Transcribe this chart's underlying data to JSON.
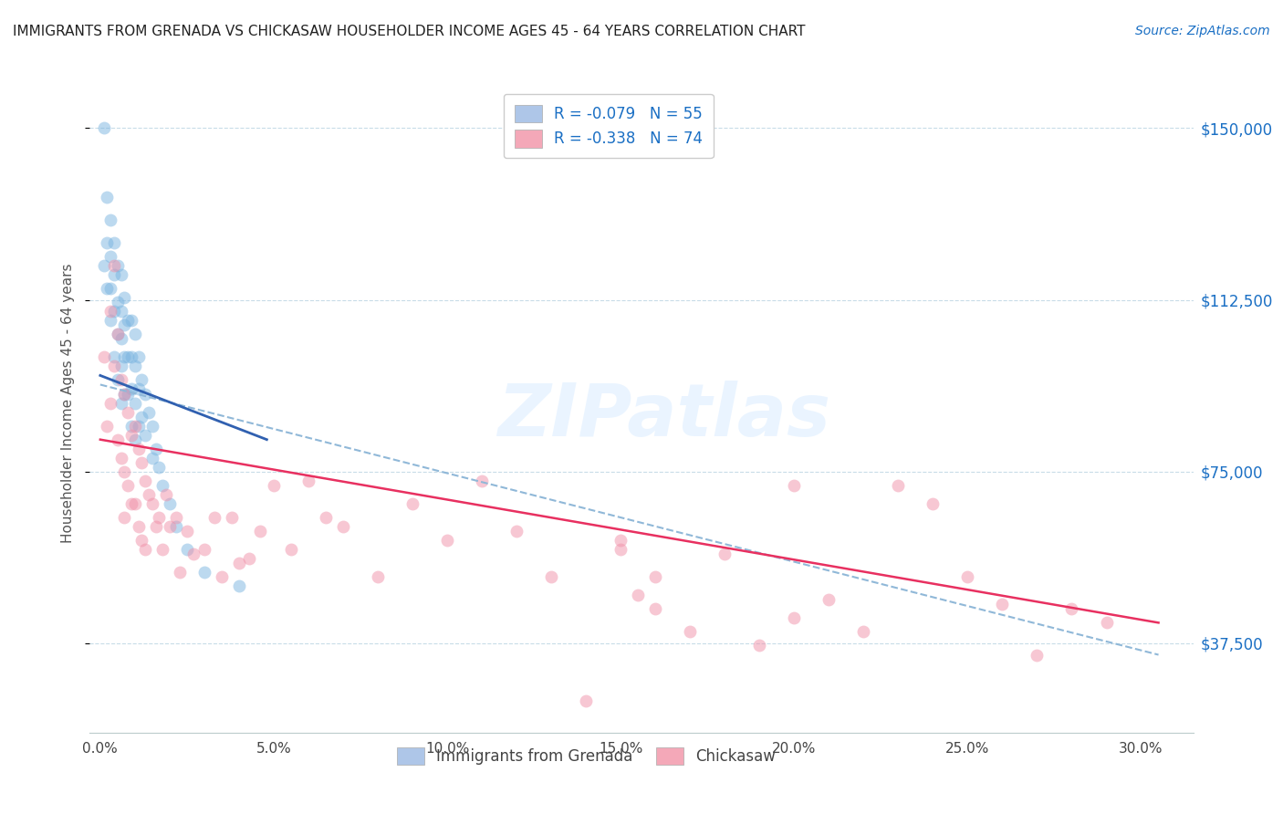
{
  "title": "IMMIGRANTS FROM GRENADA VS CHICKASAW HOUSEHOLDER INCOME AGES 45 - 64 YEARS CORRELATION CHART",
  "source": "Source: ZipAtlas.com",
  "ylabel": "Householder Income Ages 45 - 64 years",
  "xlabel_ticks": [
    "0.0%",
    "5.0%",
    "10.0%",
    "15.0%",
    "20.0%",
    "25.0%",
    "30.0%"
  ],
  "xlabel_vals": [
    0.0,
    0.05,
    0.1,
    0.15,
    0.2,
    0.25,
    0.3
  ],
  "ylabel_ticks": [
    "$37,500",
    "$75,000",
    "$112,500",
    "$150,000"
  ],
  "ylabel_vals": [
    37500,
    75000,
    112500,
    150000
  ],
  "ymin": 18000,
  "ymax": 162000,
  "xmin": -0.003,
  "xmax": 0.315,
  "legend1_label": "R = -0.079   N = 55",
  "legend2_label": "R = -0.338   N = 74",
  "legend1_color": "#aec6e8",
  "legend2_color": "#f4a8b8",
  "scatter1_color": "#7ab4e0",
  "scatter2_color": "#f090a8",
  "line1_color": "#3060b0",
  "line2_color": "#e83060",
  "dashed_line_color": "#90b8d8",
  "background_color": "#ffffff",
  "watermark": "ZIPatlas",
  "grenada_x": [
    0.001,
    0.001,
    0.002,
    0.002,
    0.002,
    0.003,
    0.003,
    0.003,
    0.003,
    0.004,
    0.004,
    0.004,
    0.004,
    0.005,
    0.005,
    0.005,
    0.005,
    0.006,
    0.006,
    0.006,
    0.006,
    0.006,
    0.007,
    0.007,
    0.007,
    0.007,
    0.008,
    0.008,
    0.008,
    0.009,
    0.009,
    0.009,
    0.009,
    0.01,
    0.01,
    0.01,
    0.01,
    0.011,
    0.011,
    0.011,
    0.012,
    0.012,
    0.013,
    0.013,
    0.014,
    0.015,
    0.015,
    0.016,
    0.017,
    0.018,
    0.02,
    0.022,
    0.025,
    0.03,
    0.04
  ],
  "grenada_y": [
    150000,
    120000,
    135000,
    125000,
    115000,
    130000,
    122000,
    115000,
    108000,
    125000,
    118000,
    110000,
    100000,
    120000,
    112000,
    105000,
    95000,
    118000,
    110000,
    104000,
    98000,
    90000,
    113000,
    107000,
    100000,
    92000,
    108000,
    100000,
    92000,
    108000,
    100000,
    93000,
    85000,
    105000,
    98000,
    90000,
    82000,
    100000,
    93000,
    85000,
    95000,
    87000,
    92000,
    83000,
    88000,
    85000,
    78000,
    80000,
    76000,
    72000,
    68000,
    63000,
    58000,
    53000,
    50000
  ],
  "chickasaw_x": [
    0.001,
    0.002,
    0.003,
    0.003,
    0.004,
    0.004,
    0.005,
    0.005,
    0.006,
    0.006,
    0.007,
    0.007,
    0.007,
    0.008,
    0.008,
    0.009,
    0.009,
    0.01,
    0.01,
    0.011,
    0.011,
    0.012,
    0.012,
    0.013,
    0.013,
    0.014,
    0.015,
    0.016,
    0.017,
    0.018,
    0.019,
    0.02,
    0.022,
    0.023,
    0.025,
    0.027,
    0.03,
    0.033,
    0.035,
    0.038,
    0.04,
    0.043,
    0.046,
    0.05,
    0.055,
    0.06,
    0.065,
    0.07,
    0.08,
    0.09,
    0.1,
    0.11,
    0.12,
    0.13,
    0.15,
    0.155,
    0.16,
    0.17,
    0.18,
    0.19,
    0.2,
    0.21,
    0.22,
    0.23,
    0.24,
    0.25,
    0.26,
    0.27,
    0.28,
    0.29,
    0.14,
    0.16,
    0.2,
    0.15
  ],
  "chickasaw_y": [
    100000,
    85000,
    110000,
    90000,
    120000,
    98000,
    105000,
    82000,
    95000,
    78000,
    92000,
    75000,
    65000,
    88000,
    72000,
    83000,
    68000,
    85000,
    68000,
    80000,
    63000,
    77000,
    60000,
    73000,
    58000,
    70000,
    68000,
    63000,
    65000,
    58000,
    70000,
    63000,
    65000,
    53000,
    62000,
    57000,
    58000,
    65000,
    52000,
    65000,
    55000,
    56000,
    62000,
    72000,
    58000,
    73000,
    65000,
    63000,
    52000,
    68000,
    60000,
    73000,
    62000,
    52000,
    58000,
    48000,
    45000,
    40000,
    57000,
    37000,
    43000,
    47000,
    40000,
    72000,
    68000,
    52000,
    46000,
    35000,
    45000,
    42000,
    25000,
    52000,
    72000,
    60000
  ],
  "blue_line_x": [
    0.0,
    0.048
  ],
  "blue_line_y": [
    96000,
    82000
  ],
  "pink_line_x": [
    0.0,
    0.305
  ],
  "pink_line_y": [
    82000,
    42000
  ],
  "dash_line_x": [
    0.0,
    0.305
  ],
  "dash_line_y": [
    94000,
    35000
  ]
}
